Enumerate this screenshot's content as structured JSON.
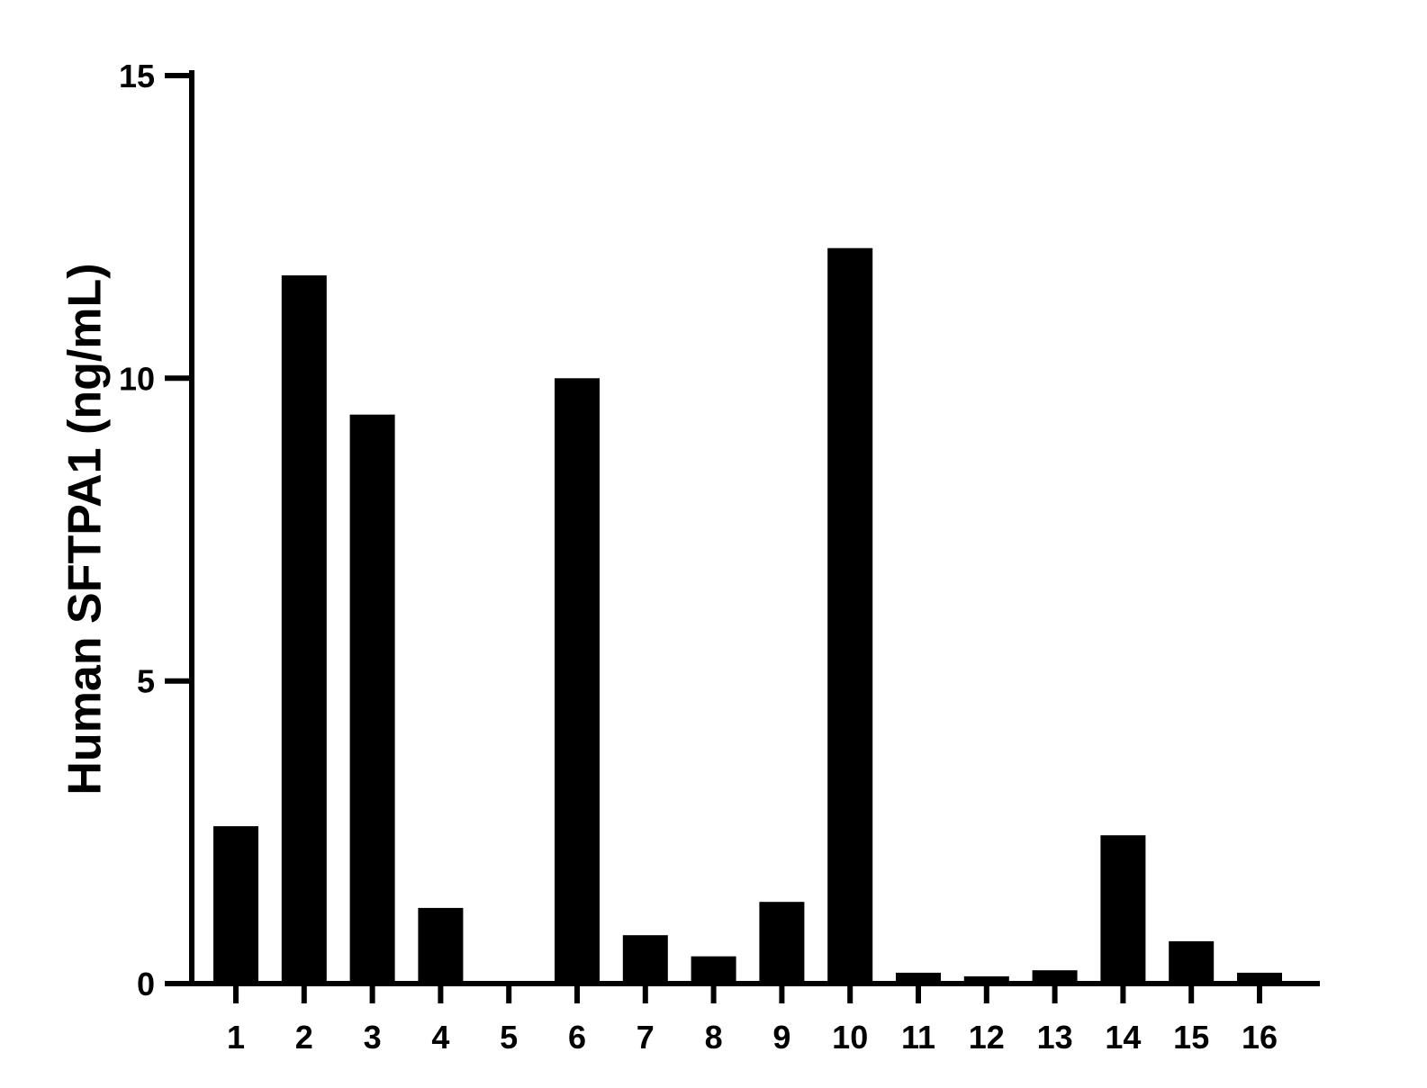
{
  "chart_data": {
    "type": "bar",
    "title": "",
    "xlabel": "",
    "ylabel": "Human SFTPA1 (ng/mL)",
    "categories": [
      "1",
      "2",
      "3",
      "4",
      "5",
      "6",
      "7",
      "8",
      "9",
      "10",
      "11",
      "12",
      "13",
      "14",
      "15",
      "16"
    ],
    "values": [
      2.6,
      11.7,
      9.4,
      1.25,
      0.0,
      10.0,
      0.8,
      0.45,
      1.35,
      12.15,
      0.18,
      0.12,
      0.22,
      2.45,
      0.7,
      0.18
    ],
    "ylim": [
      0,
      15
    ],
    "yticks": [
      "0",
      "5",
      "10",
      "15"
    ],
    "grid": false,
    "bar_color": "#000000"
  }
}
